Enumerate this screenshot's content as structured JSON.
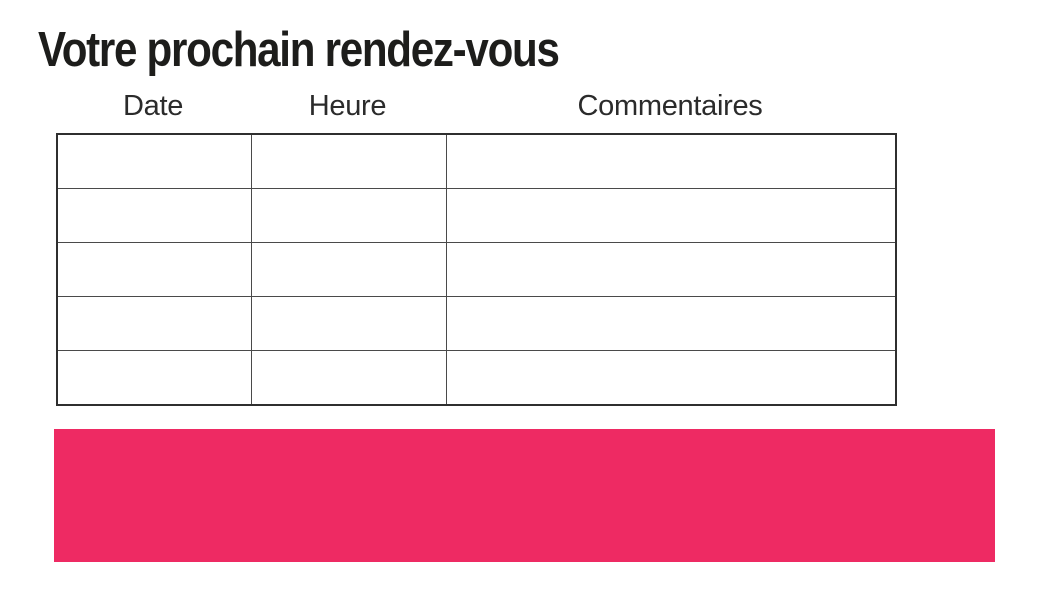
{
  "page": {
    "title": "Votre prochain rendez-vous"
  },
  "appointments_table": {
    "columns": [
      {
        "key": "date",
        "label": "Date"
      },
      {
        "key": "heure",
        "label": "Heure"
      },
      {
        "key": "commentaires",
        "label": "Commentaires"
      }
    ],
    "rows": [
      {
        "date": "",
        "heure": "",
        "commentaires": ""
      },
      {
        "date": "",
        "heure": "",
        "commentaires": ""
      },
      {
        "date": "",
        "heure": "",
        "commentaires": ""
      },
      {
        "date": "",
        "heure": "",
        "commentaires": ""
      },
      {
        "date": "",
        "heure": "",
        "commentaires": ""
      }
    ]
  },
  "banner": {
    "text": "",
    "color": "#EE2A63"
  },
  "colors": {
    "title_text": "#1d1d1b",
    "header_text": "#2b2b2b",
    "table_border": "#4a4a4a",
    "table_outer_border": "#2f2f2f",
    "background": "#ffffff",
    "accent_pink": "#EE2A63"
  }
}
